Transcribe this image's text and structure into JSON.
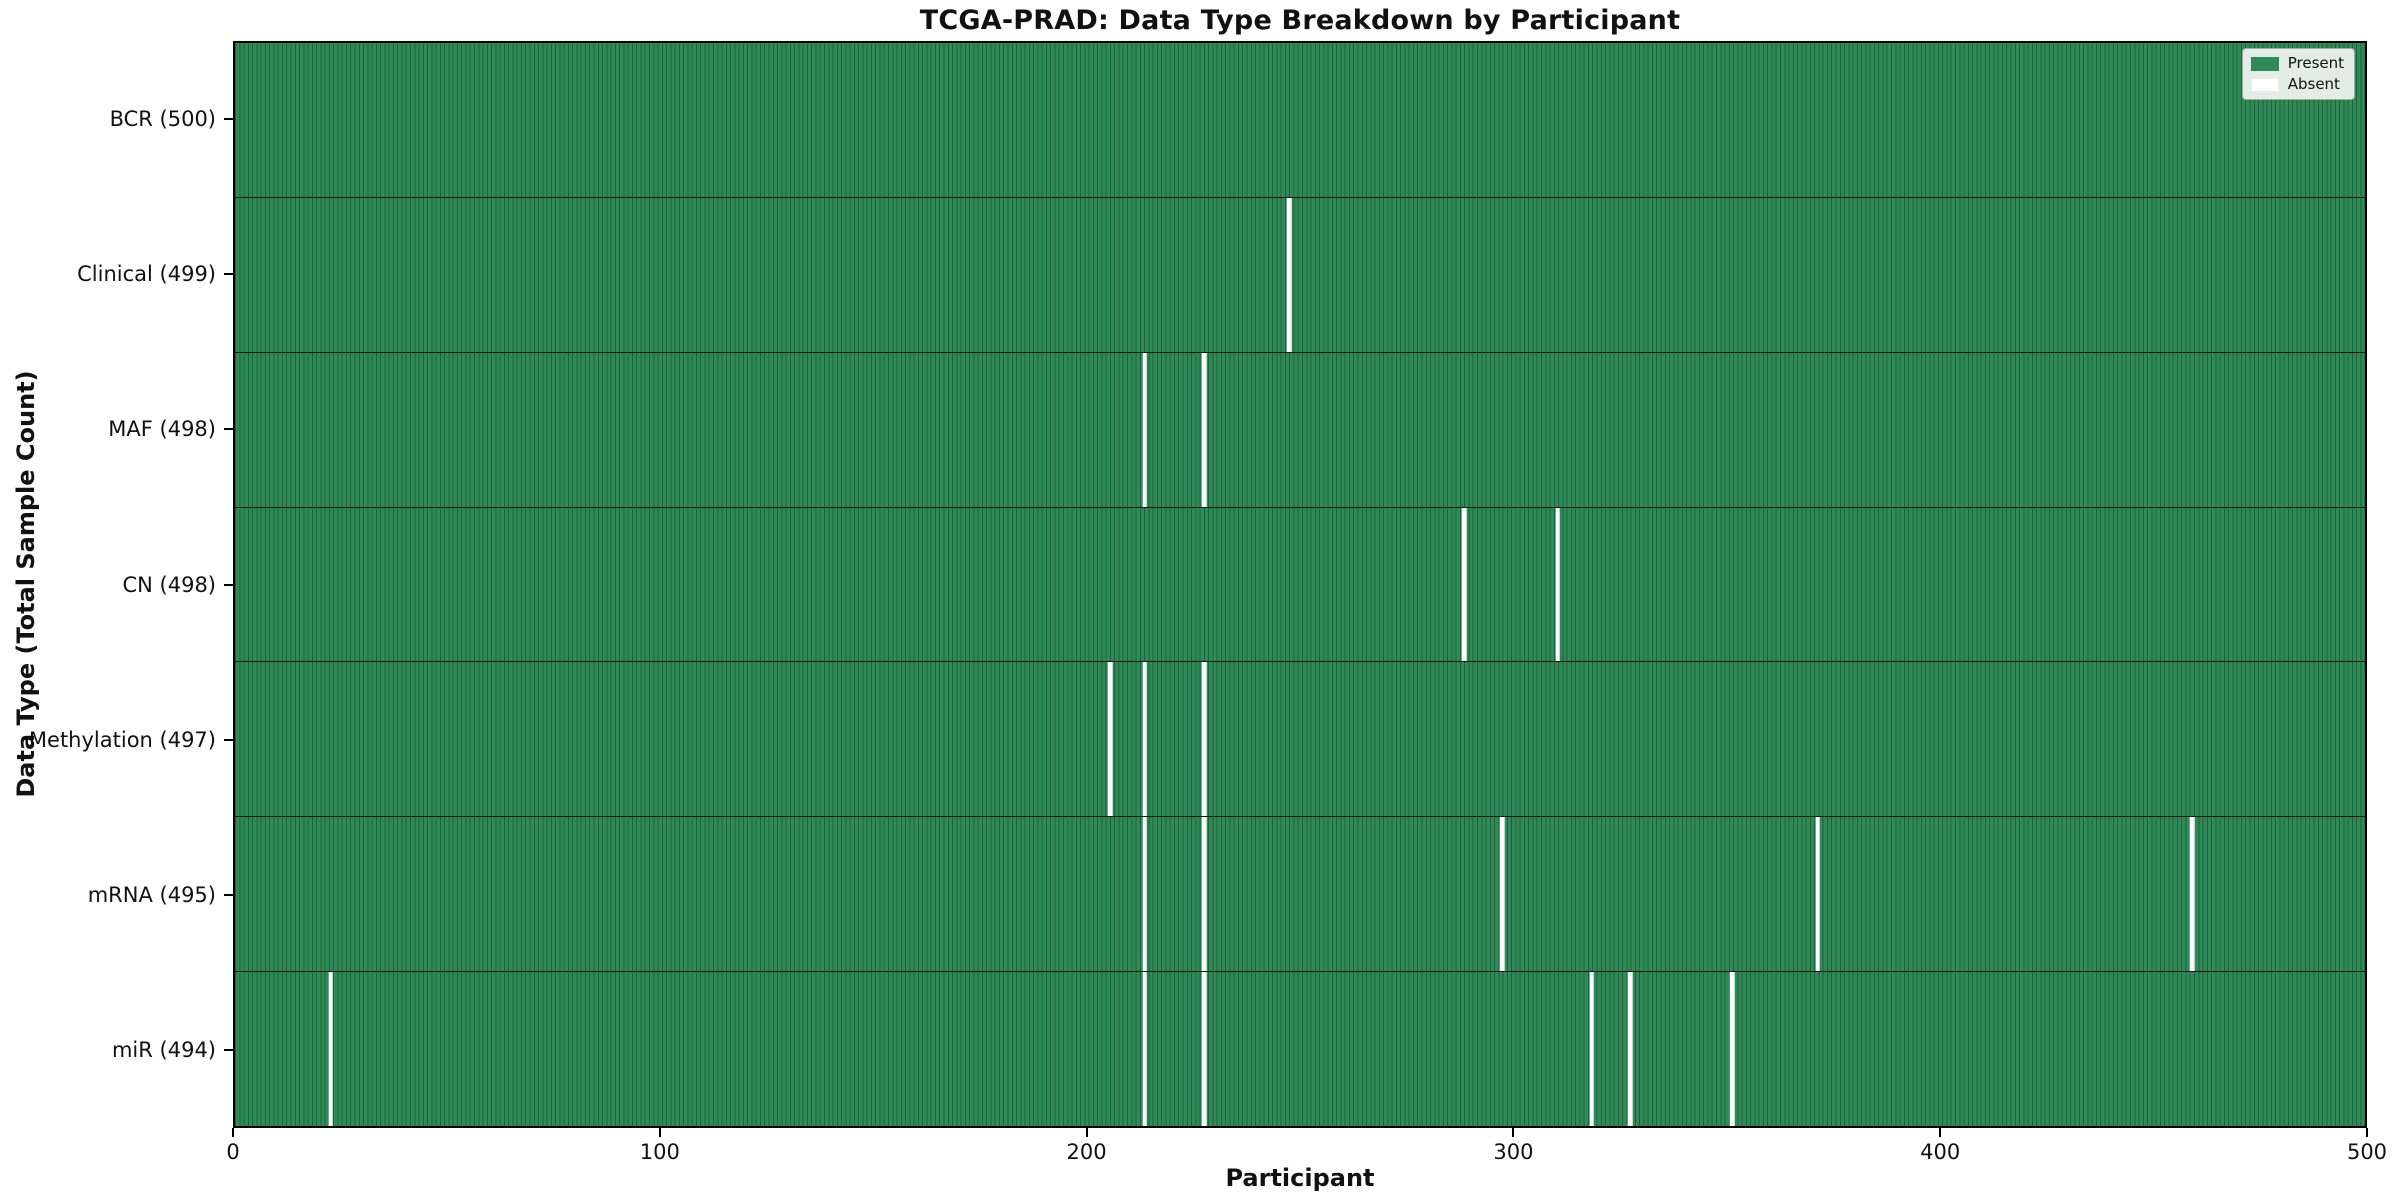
{
  "title": "TCGA-PRAD: Data Type Breakdown by Participant",
  "axes": {
    "xlabel": "Participant",
    "ylabel": "Data Type (Total Sample Count)",
    "x_ticks": [
      0,
      100,
      200,
      300,
      400,
      500
    ],
    "x_range": [
      0,
      500
    ]
  },
  "legend": {
    "items": [
      {
        "label": "Present",
        "color": "#2e8b57"
      },
      {
        "label": "Absent",
        "color": "#ffffff"
      }
    ],
    "position": "upper right"
  },
  "colors": {
    "present_fill": "#2e8b57",
    "bar_edge": "#20603c",
    "row_separator": "#000000",
    "absent_fill": "#ffffff",
    "legend_face": "#f2f6f2",
    "legend_edge": "#a8a8a8",
    "text": "#111111",
    "background": "#ffffff"
  },
  "chart_data": {
    "type": "heatmap",
    "title": "TCGA-PRAD: Data Type Breakdown by Participant",
    "xlabel": "Participant",
    "ylabel": "Data Type (Total Sample Count)",
    "x_range": [
      0,
      500
    ],
    "n_participants": 500,
    "grid": false,
    "legend_entries": [
      "Present",
      "Absent"
    ],
    "legend_position": "upper right",
    "rows": [
      {
        "name": "BCR",
        "label": "BCR (500)",
        "total_count": 500,
        "absent_participants": []
      },
      {
        "name": "Clinical",
        "label": "Clinical (499)",
        "total_count": 499,
        "absent_participants": [
          247
        ]
      },
      {
        "name": "MAF",
        "label": "MAF (498)",
        "total_count": 498,
        "absent_participants": [
          213,
          227
        ]
      },
      {
        "name": "CN",
        "label": "CN (498)",
        "total_count": 498,
        "absent_participants": [
          288,
          310
        ]
      },
      {
        "name": "Methylation",
        "label": "Methylation (497)",
        "total_count": 497,
        "absent_participants": [
          205,
          213,
          227
        ]
      },
      {
        "name": "mRNA",
        "label": "mRNA (495)",
        "total_count": 495,
        "absent_participants": [
          213,
          227,
          297,
          371,
          459
        ]
      },
      {
        "name": "miR",
        "label": "miR (494)",
        "total_count": 494,
        "absent_participants": [
          22,
          213,
          227,
          318,
          327,
          351
        ]
      }
    ]
  }
}
